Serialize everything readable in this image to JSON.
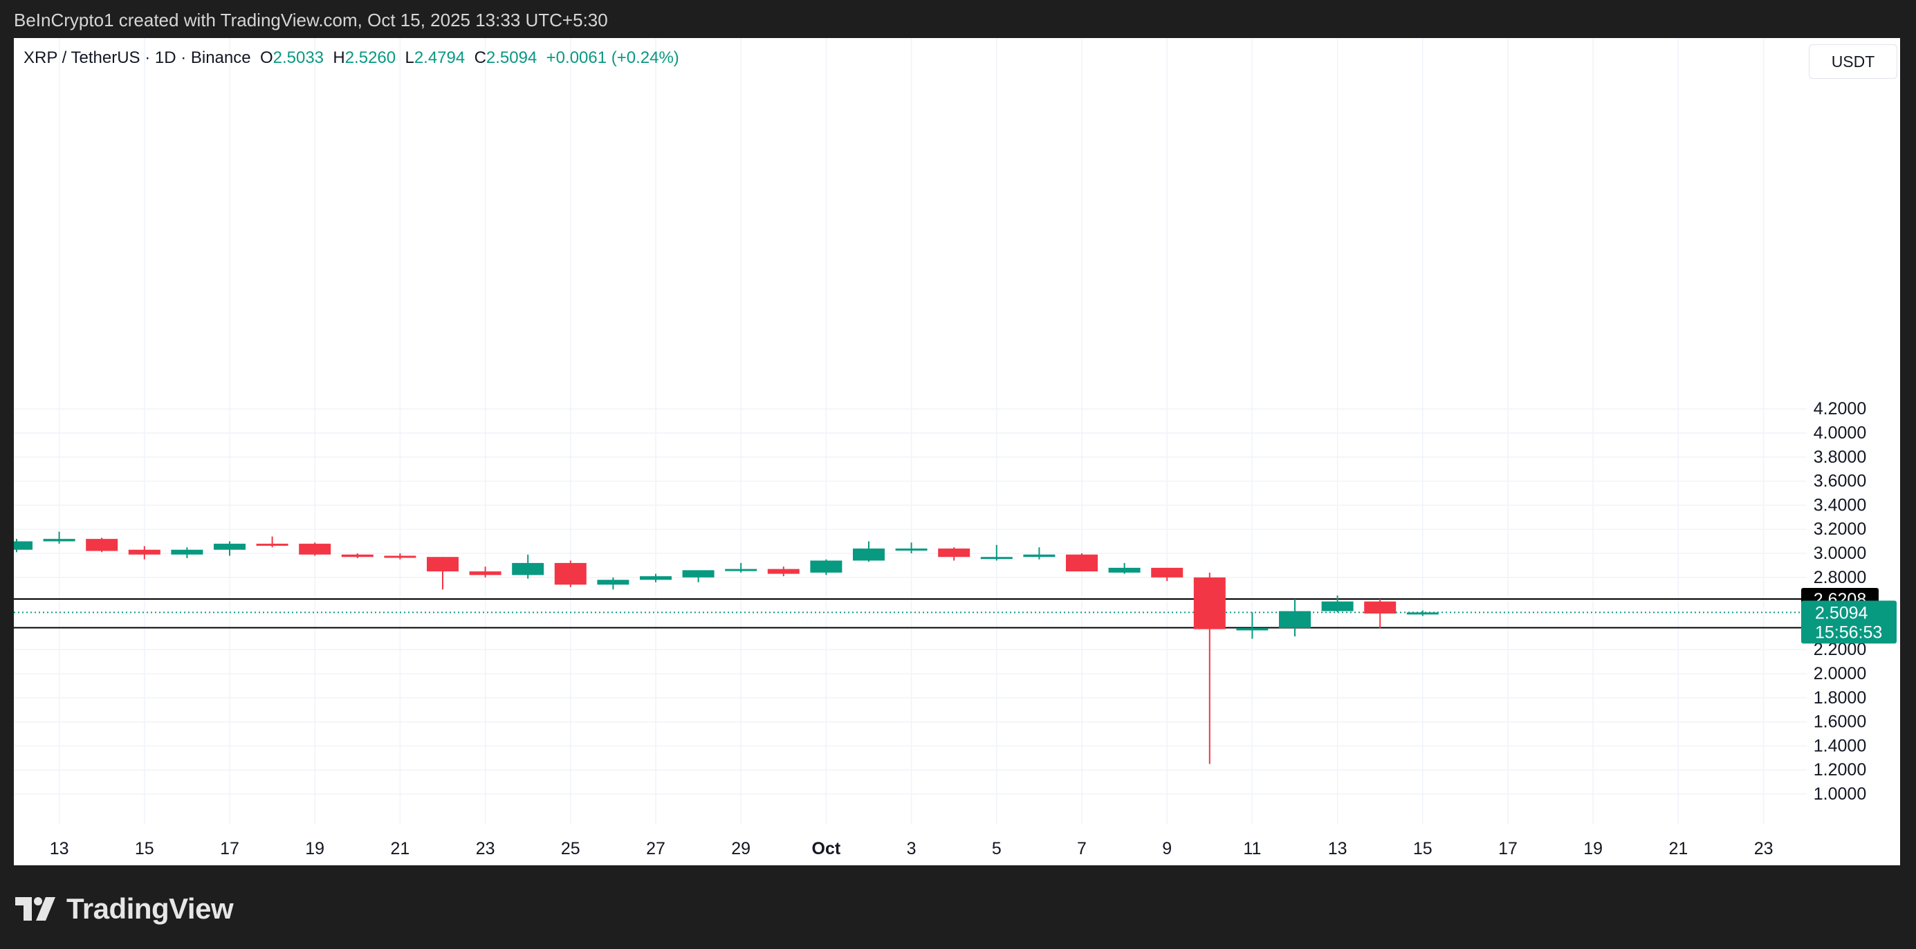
{
  "header": {
    "credit": "BeInCrypto1 created with TradingView.com, Oct 15, 2025 13:33 UTC+5:30"
  },
  "legend": {
    "symbol": "XRP / TetherUS · 1D · Binance",
    "open_label": "O",
    "open": "2.5033",
    "high_label": "H",
    "high": "2.5260",
    "low_label": "L",
    "low": "2.4794",
    "close_label": "C",
    "close": "2.5094",
    "change": "+0.0061 (+0.24%)"
  },
  "currency_button": "USDT",
  "footer": {
    "brand": "TradingView",
    "logo_icon": "tradingview-logo-icon"
  },
  "colors": {
    "up": "#089981",
    "down": "#f23645",
    "grid": "#f0f3fa",
    "panel": "#ffffff",
    "background": "#1e1e1e"
  },
  "chart_data": {
    "type": "candlestick",
    "y_axis_ticks": [
      "4.2000",
      "4.0000",
      "3.8000",
      "3.6000",
      "3.4000",
      "3.2000",
      "3.0000",
      "2.8000",
      "2.2000",
      "2.0000",
      "1.8000",
      "1.6000",
      "1.4000",
      "1.2000",
      "1.0000"
    ],
    "ylim": [
      0.85,
      4.4
    ],
    "x_axis_ticks": [
      "13",
      "15",
      "17",
      "19",
      "21",
      "23",
      "25",
      "27",
      "29",
      "Oct",
      "3",
      "5",
      "7",
      "9",
      "11",
      "13",
      "15",
      "17",
      "19",
      "21",
      "23"
    ],
    "x_axis_tick_dates": [
      "2025-09-13",
      "2025-09-15",
      "2025-09-17",
      "2025-09-19",
      "2025-09-21",
      "2025-09-23",
      "2025-09-25",
      "2025-09-27",
      "2025-09-29",
      "2025-10-01",
      "2025-10-03",
      "2025-10-05",
      "2025-10-07",
      "2025-10-09",
      "2025-10-11",
      "2025-10-13",
      "2025-10-15",
      "2025-10-17",
      "2025-10-19",
      "2025-10-21",
      "2025-10-23"
    ],
    "xlim": [
      "2025-09-12",
      "2025-10-24"
    ],
    "candles": [
      {
        "date": "2025-09-12",
        "o": 3.03,
        "h": 3.12,
        "l": 3.01,
        "c": 3.1
      },
      {
        "date": "2025-09-13",
        "o": 3.1,
        "h": 3.18,
        "l": 3.08,
        "c": 3.12
      },
      {
        "date": "2025-09-14",
        "o": 3.12,
        "h": 3.13,
        "l": 3.01,
        "c": 3.02
      },
      {
        "date": "2025-09-15",
        "o": 3.03,
        "h": 3.06,
        "l": 2.95,
        "c": 2.99
      },
      {
        "date": "2025-09-16",
        "o": 2.99,
        "h": 3.05,
        "l": 2.96,
        "c": 3.03
      },
      {
        "date": "2025-09-17",
        "o": 3.03,
        "h": 3.1,
        "l": 2.98,
        "c": 3.08
      },
      {
        "date": "2025-09-18",
        "o": 3.08,
        "h": 3.14,
        "l": 3.05,
        "c": 3.07
      },
      {
        "date": "2025-09-19",
        "o": 3.08,
        "h": 3.09,
        "l": 2.98,
        "c": 2.99
      },
      {
        "date": "2025-09-20",
        "o": 2.99,
        "h": 3.0,
        "l": 2.96,
        "c": 2.97
      },
      {
        "date": "2025-09-21",
        "o": 2.98,
        "h": 3.0,
        "l": 2.95,
        "c": 2.97
      },
      {
        "date": "2025-09-22",
        "o": 2.97,
        "h": 2.97,
        "l": 2.7,
        "c": 2.85
      },
      {
        "date": "2025-09-23",
        "o": 2.85,
        "h": 2.89,
        "l": 2.8,
        "c": 2.82
      },
      {
        "date": "2025-09-24",
        "o": 2.82,
        "h": 2.99,
        "l": 2.79,
        "c": 2.92
      },
      {
        "date": "2025-09-25",
        "o": 2.92,
        "h": 2.94,
        "l": 2.72,
        "c": 2.74
      },
      {
        "date": "2025-09-26",
        "o": 2.74,
        "h": 2.8,
        "l": 2.7,
        "c": 2.78
      },
      {
        "date": "2025-09-27",
        "o": 2.78,
        "h": 2.83,
        "l": 2.76,
        "c": 2.81
      },
      {
        "date": "2025-09-28",
        "o": 2.8,
        "h": 2.86,
        "l": 2.76,
        "c": 2.86
      },
      {
        "date": "2025-09-29",
        "o": 2.86,
        "h": 2.92,
        "l": 2.84,
        "c": 2.87
      },
      {
        "date": "2025-09-30",
        "o": 2.87,
        "h": 2.89,
        "l": 2.81,
        "c": 2.83
      },
      {
        "date": "2025-10-01",
        "o": 2.84,
        "h": 2.95,
        "l": 2.82,
        "c": 2.94
      },
      {
        "date": "2025-10-02",
        "o": 2.94,
        "h": 3.1,
        "l": 2.93,
        "c": 3.04
      },
      {
        "date": "2025-10-03",
        "o": 3.04,
        "h": 3.09,
        "l": 3.0,
        "c": 3.04
      },
      {
        "date": "2025-10-04",
        "o": 3.04,
        "h": 3.05,
        "l": 2.94,
        "c": 2.97
      },
      {
        "date": "2025-10-05",
        "o": 2.97,
        "h": 3.07,
        "l": 2.94,
        "c": 2.97
      },
      {
        "date": "2025-10-06",
        "o": 2.97,
        "h": 3.05,
        "l": 2.95,
        "c": 2.99
      },
      {
        "date": "2025-10-07",
        "o": 2.99,
        "h": 3.0,
        "l": 2.85,
        "c": 2.85
      },
      {
        "date": "2025-10-08",
        "o": 2.84,
        "h": 2.92,
        "l": 2.83,
        "c": 2.88
      },
      {
        "date": "2025-10-09",
        "o": 2.88,
        "h": 2.88,
        "l": 2.77,
        "c": 2.8
      },
      {
        "date": "2025-10-10",
        "o": 2.8,
        "h": 2.84,
        "l": 1.25,
        "c": 2.37
      },
      {
        "date": "2025-10-11",
        "o": 2.36,
        "h": 2.51,
        "l": 2.29,
        "c": 2.38
      },
      {
        "date": "2025-10-12",
        "o": 2.38,
        "h": 2.62,
        "l": 2.31,
        "c": 2.52
      },
      {
        "date": "2025-10-13",
        "o": 2.52,
        "h": 2.65,
        "l": 2.51,
        "c": 2.6
      },
      {
        "date": "2025-10-14",
        "o": 2.6,
        "h": 2.62,
        "l": 2.38,
        "c": 2.5
      },
      {
        "date": "2025-10-15",
        "o": 2.5033,
        "h": 2.526,
        "l": 2.4794,
        "c": 2.5094
      }
    ],
    "horizontal_lines": [
      {
        "value": 2.6208,
        "label": "2.6208"
      },
      {
        "value": 2.382,
        "label": "2.3820"
      }
    ],
    "last_price": {
      "value": 2.5094,
      "label": "2.5094",
      "countdown": "15:56:53"
    }
  }
}
